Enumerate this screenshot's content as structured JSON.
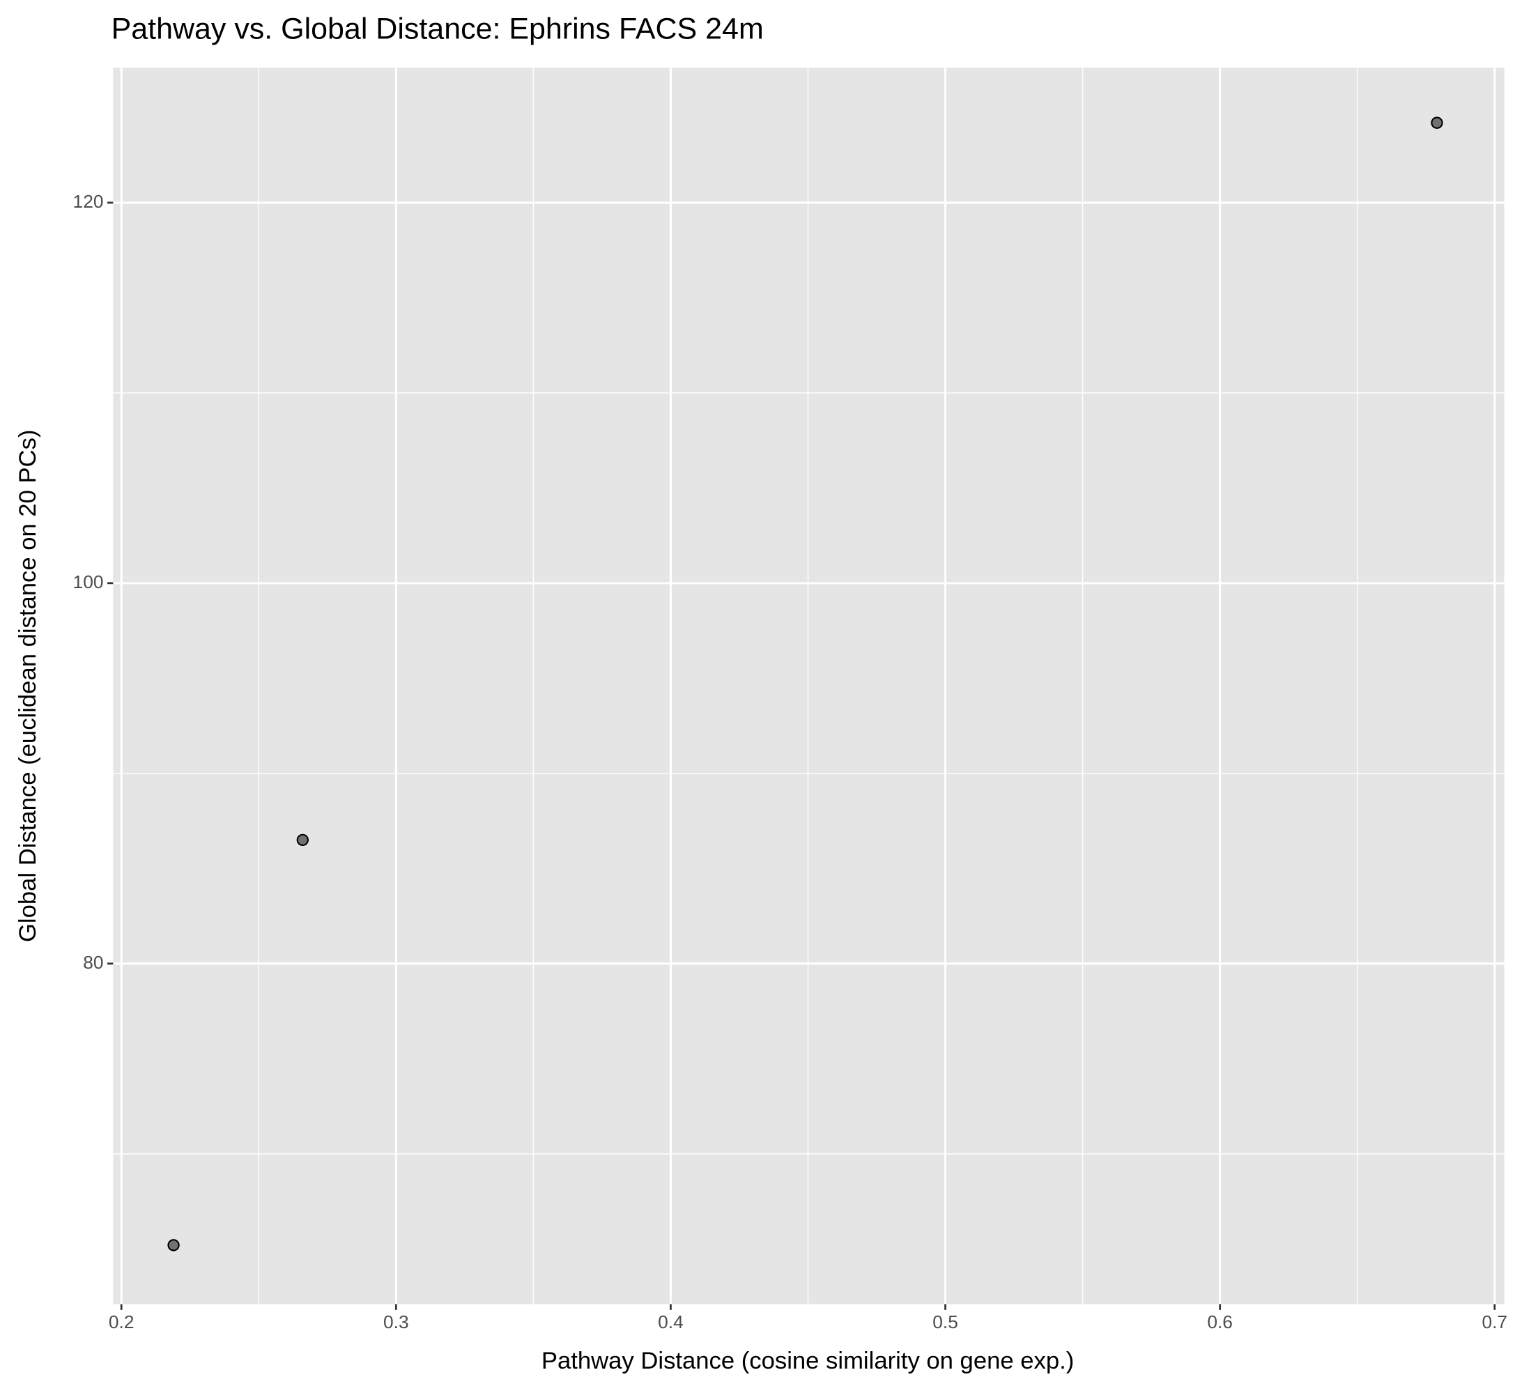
{
  "chart_data": {
    "type": "scatter",
    "title": "Pathway vs. Global Distance: Ephrins FACS 24m",
    "x_label": "Pathway Distance (cosine similarity on gene exp.)",
    "y_label": "Global Distance (euclidean distance on 20 PCs)",
    "x": [
      0.219,
      0.266,
      0.679
    ],
    "values": [
      65.2,
      86.5,
      124.2
    ],
    "color": "#000000",
    "xlim": [
      0.197,
      0.7035
    ],
    "ylim": [
      62.1,
      127.1
    ],
    "xticks": [
      0.2,
      0.3,
      0.4,
      0.5,
      0.6,
      0.7
    ],
    "yticks": [
      80,
      100,
      120
    ],
    "minor_xticks": [
      0.25,
      0.35,
      0.45,
      0.55,
      0.65
    ],
    "minor_yticks": [
      70,
      90,
      110
    ],
    "grid": true
  }
}
